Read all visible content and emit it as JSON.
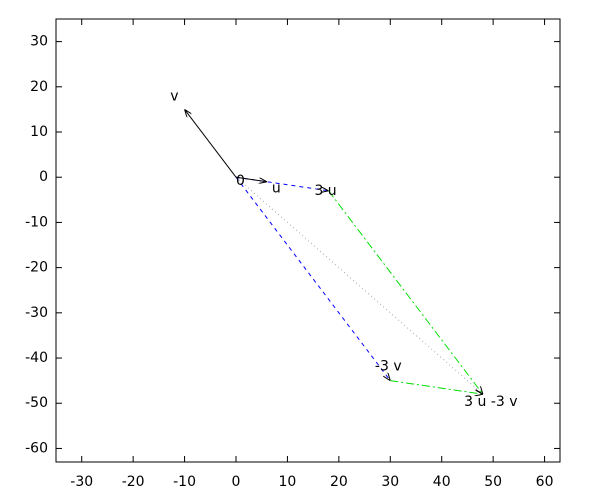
{
  "chart_data": {
    "type": "vector",
    "points": [
      {
        "label": "0",
        "x": 0,
        "y": 0
      },
      {
        "label": "u",
        "x": 6,
        "y": -1
      },
      {
        "label": "v",
        "x": -10,
        "y": 15
      },
      {
        "label": "3 u",
        "x": 18,
        "y": -3
      },
      {
        "label": "-3 v",
        "x": 30,
        "y": -45
      },
      {
        "label": "3 u -3 v",
        "x": 48,
        "y": -48
      }
    ],
    "xlim": [
      -35,
      63
    ],
    "ylim": [
      -63,
      35
    ],
    "xticks": [
      -30,
      -20,
      -10,
      0,
      10,
      20,
      30,
      40,
      50,
      60
    ],
    "yticks": [
      -60,
      -50,
      -40,
      -30,
      -20,
      -10,
      0,
      10,
      20,
      30
    ]
  }
}
